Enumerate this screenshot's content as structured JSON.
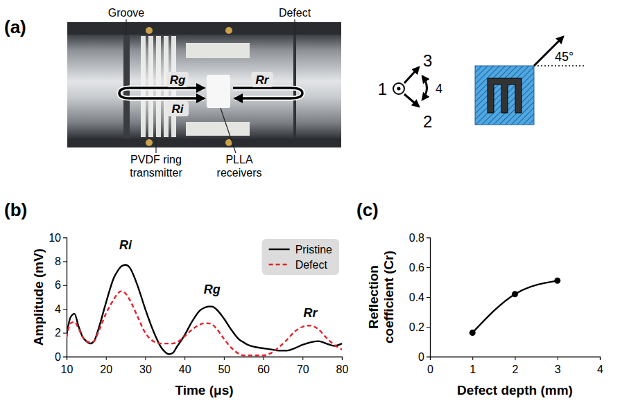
{
  "figure": {
    "panel_labels": [
      "(a)",
      "(b)",
      "(c)"
    ]
  },
  "photo": {
    "labels": {
      "groove": "Groove",
      "defect": "Defect",
      "transmitter": [
        "PVDF ring",
        "transmitter"
      ],
      "receivers": [
        "PLLA",
        "receivers"
      ]
    },
    "paths": {
      "rg": "Rg",
      "ri": "Ri",
      "rr": "Rr"
    }
  },
  "diagram": {
    "axes": [
      "1",
      "2",
      "3",
      "4"
    ],
    "angle_label": "45°"
  },
  "chart_data": [
    {
      "type": "line",
      "x_label": "Time (μs)",
      "y_label": "Amplitude (mV)",
      "x": [
        10,
        11,
        12,
        13,
        14,
        15,
        16,
        17,
        18,
        20,
        22,
        23,
        24,
        25,
        26,
        28,
        30,
        32,
        34,
        35,
        36,
        37,
        38,
        40,
        42,
        44,
        45,
        46,
        47,
        48,
        50,
        52,
        54,
        55,
        56,
        58,
        60,
        62,
        64,
        66,
        68,
        70,
        71,
        72,
        74,
        76,
        78,
        80
      ],
      "series": [
        {
          "name": "Pristine",
          "color": "#000000",
          "line_style": "solid",
          "values": [
            1.8,
            3.3,
            3.6,
            2.6,
            1.7,
            1.3,
            1.1,
            1.3,
            2.2,
            4.5,
            6.6,
            7.2,
            7.6,
            7.7,
            7.5,
            6.0,
            4.0,
            2.2,
            0.8,
            0.4,
            0.2,
            0.3,
            0.8,
            1.8,
            3.0,
            3.9,
            4.1,
            4.2,
            4.2,
            4.0,
            3.2,
            2.2,
            1.4,
            1.2,
            1.0,
            0.8,
            0.7,
            0.6,
            0.5,
            0.5,
            0.7,
            1.0,
            1.1,
            1.2,
            1.3,
            1.1,
            0.9,
            1.1
          ]
        },
        {
          "name": "Defect",
          "color": "#e8202a",
          "line_style": "dashed",
          "values": [
            1.6,
            2.8,
            2.9,
            2.4,
            1.7,
            1.3,
            1.2,
            1.3,
            2.0,
            3.6,
            4.8,
            5.3,
            5.5,
            5.3,
            4.8,
            3.4,
            2.0,
            1.3,
            1.1,
            1.1,
            1.1,
            1.1,
            1.2,
            1.7,
            2.3,
            2.7,
            2.8,
            2.8,
            2.7,
            2.4,
            1.5,
            0.7,
            0.2,
            0.1,
            0.1,
            0.1,
            0.1,
            0.3,
            0.8,
            1.4,
            2.1,
            2.5,
            2.6,
            2.6,
            2.3,
            1.6,
            1.0,
            0.6
          ]
        }
      ],
      "xlim": [
        10,
        80
      ],
      "xticks": [
        10,
        20,
        30,
        40,
        50,
        60,
        70,
        80
      ],
      "ylim": [
        0,
        10
      ],
      "yticks": [
        0,
        2,
        4,
        6,
        8,
        10
      ],
      "legend": "upper right",
      "annotations": [
        {
          "text": "Ri",
          "x": 25,
          "y": 9.0
        },
        {
          "text": "Rg",
          "x": 47,
          "y": 5.3
        },
        {
          "text": "Rr",
          "x": 72,
          "y": 3.3
        }
      ]
    },
    {
      "type": "line",
      "x_label": "Defect depth (mm)",
      "y_label": "Reflection coefficient (Cr)",
      "x": [
        1,
        2,
        3
      ],
      "values": [
        0.16,
        0.42,
        0.51
      ],
      "color": "#000000",
      "marker": "circle",
      "line_style": "solid",
      "xlim": [
        0,
        4
      ],
      "xticks": [
        0,
        1,
        2,
        3,
        4
      ],
      "ylim": [
        0,
        0.8
      ],
      "yticks": [
        0,
        0.2,
        0.4,
        0.6,
        0.8
      ]
    }
  ]
}
